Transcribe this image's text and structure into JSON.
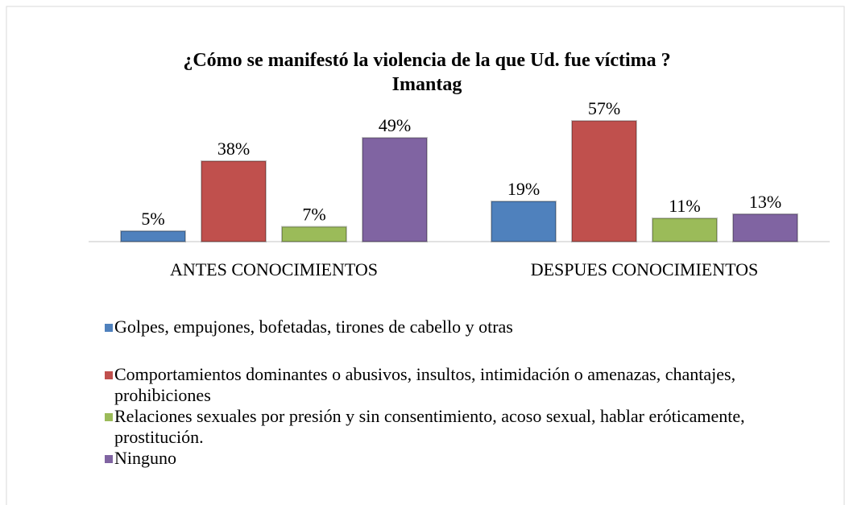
{
  "chart_data": {
    "type": "bar",
    "title": [
      "¿Cómo se manifestó la violencia de la que Ud. fue víctima ?",
      "Imantag"
    ],
    "categories": [
      "ANTES CONOCIMIENTOS",
      "DESPUES CONOCIMIENTOS"
    ],
    "series": [
      {
        "name": "Golpes, empujones, bofetadas, tirones de cabello y otras",
        "color": "#4f81bd",
        "values": [
          5,
          19
        ],
        "value_labels": [
          "5%",
          "19%"
        ]
      },
      {
        "name": "Comportamientos dominantes o abusivos, insultos, intimidación o amenazas, chantajes, prohibiciones",
        "color": "#c0504d",
        "values": [
          38,
          57
        ],
        "value_labels": [
          "38%",
          "57%"
        ]
      },
      {
        "name": "Relaciones sexuales por presión y sin consentimiento, acoso sexual, hablar eróticamente, prostitución.",
        "color": "#9bbb59",
        "values": [
          7,
          11
        ],
        "value_labels": [
          "7%",
          "11%"
        ]
      },
      {
        "name": "Ninguno",
        "color": "#8064a2",
        "values": [
          49,
          13
        ],
        "value_labels": [
          "49%",
          "13%"
        ]
      }
    ],
    "legend": "bottom"
  }
}
